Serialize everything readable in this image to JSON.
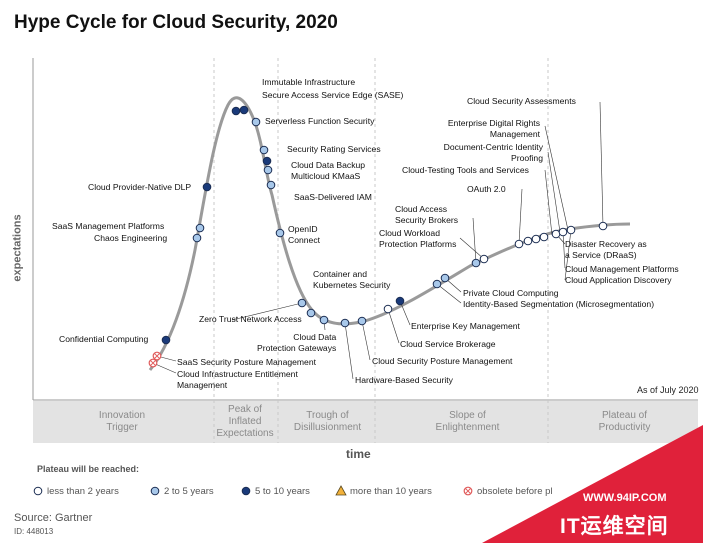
{
  "title": "Hype Cycle for Cloud Security, 2020",
  "axes": {
    "y_label": "expectations",
    "x_label": "time"
  },
  "as_of": "As of July 2020",
  "phases": [
    {
      "line1": "Innovation",
      "line2": "Trigger",
      "line3": ""
    },
    {
      "line1": "Peak of",
      "line2": "Inflated",
      "line3": "Expectations"
    },
    {
      "line1": "Trough of",
      "line2": "Disillusionment",
      "line3": ""
    },
    {
      "line1": "Slope of",
      "line2": "Enlightenment",
      "line3": ""
    },
    {
      "line1": "Plateau of",
      "line2": "Productivity",
      "line3": ""
    }
  ],
  "colors": {
    "less_than_2_years": "#ffffff",
    "2_to_5_years": "#a8c8ea",
    "5_to_10_years": "#1a3a7a",
    "more_than_10_years": "#f2b13a",
    "obsolete_before_plateau": "#e05a5a",
    "curve": "#9a9a9a",
    "phase_band": "#e3e3e3",
    "watermark": "#e0213a"
  },
  "technologies": [
    {
      "name": "Immutable Infrastructure",
      "plateau": "5 to 10 years"
    },
    {
      "name": "Secure Access Service Edge (SASE)",
      "plateau": "5 to 10 years"
    },
    {
      "name": "Serverless Function Security",
      "plateau": "2 to 5 years"
    },
    {
      "name": "Security Rating Services",
      "plateau": "2 to 5 years"
    },
    {
      "name": "Cloud Data Backup",
      "plateau": "5 to 10 years"
    },
    {
      "name": "Multicloud KMaaS",
      "plateau": "2 to 5 years"
    },
    {
      "name": "SaaS-Delivered IAM",
      "plateau": "2 to 5 years"
    },
    {
      "name": "OpenID Connect",
      "plateau": "2 to 5 years"
    },
    {
      "name": "Cloud Provider-Native DLP",
      "plateau": "5 to 10 years"
    },
    {
      "name": "SaaS Management Platforms",
      "plateau": "2 to 5 years"
    },
    {
      "name": "Chaos Engineering",
      "plateau": "2 to 5 years"
    },
    {
      "name": "Confidential Computing",
      "plateau": "5 to 10 years"
    },
    {
      "name": "SaaS Security Posture Management",
      "plateau": "obsolete before plateau"
    },
    {
      "name": "Cloud Infrastructure Entitlement Management",
      "plateau": "obsolete before plateau"
    },
    {
      "name": "Container and Kubernetes Security",
      "plateau": "2 to 5 years"
    },
    {
      "name": "Zero Trust Network Access",
      "plateau": "2 to 5 years"
    },
    {
      "name": "Cloud Data Protection Gateways",
      "plateau": "2 to 5 years"
    },
    {
      "name": "Hardware-Based Security",
      "plateau": "2 to 5 years"
    },
    {
      "name": "Cloud Security Posture Management",
      "plateau": "2 to 5 years"
    },
    {
      "name": "Cloud Service Brokerage",
      "plateau": "less than 2 years"
    },
    {
      "name": "Enterprise Key Management",
      "plateau": "5 to 10 years"
    },
    {
      "name": "Identity-Based Segmentation (Microsegmentation)",
      "plateau": "2 to 5 years"
    },
    {
      "name": "Private Cloud Computing",
      "plateau": "2 to 5 years"
    },
    {
      "name": "Cloud Access Security Brokers",
      "plateau": "2 to 5 years"
    },
    {
      "name": "Cloud Workload Protection Platforms",
      "plateau": "less than 2 years"
    },
    {
      "name": "OAuth 2.0",
      "plateau": "less than 2 years"
    },
    {
      "name": "Cloud Security Assessments",
      "plateau": "less than 2 years"
    },
    {
      "name": "Enterprise Digital Rights Management",
      "plateau": "less than 2 years"
    },
    {
      "name": "Document-Centric Identity Proofing",
      "plateau": "less than 2 years"
    },
    {
      "name": "Cloud-Testing Tools and Services",
      "plateau": "less than 2 years"
    },
    {
      "name": "Disaster Recovery as a Service (DRaaS)",
      "plateau": "less than 2 years"
    },
    {
      "name": "Cloud Management Platforms",
      "plateau": "less than 2 years"
    },
    {
      "name": "Cloud Application Discovery",
      "plateau": "less than 2 years"
    }
  ],
  "labels": {
    "immutable": "Immutable Infrastructure",
    "sase": "Secure Access Service Edge (SASE)",
    "serverless": "Serverless Function Security",
    "rating": "Security Rating Services",
    "backup": "Cloud Data Backup",
    "kmaas": "Multicloud KMaaS",
    "iam": "SaaS-Delivered IAM",
    "openid_1": "OpenID",
    "openid_2": "Connect",
    "dlp": "Cloud Provider-Native DLP",
    "saasmgmt": "SaaS Management Platforms",
    "chaos": "Chaos Engineering",
    "confidential": "Confidential Computing",
    "sspm": "SaaS Security Posture Management",
    "ciem_1": "Cloud Infrastructure Entitlement",
    "ciem_2": "Management",
    "container_1": "Container and",
    "container_2": "Kubernetes Security",
    "ztna": "Zero Trust Network Access",
    "dpg_1": "Cloud Data",
    "dpg_2": "Protection Gateways",
    "hardware": "Hardware-Based Security",
    "cspm": "Cloud Security Posture Management",
    "csb": "Cloud Service Brokerage",
    "ekm": "Enterprise Key Management",
    "ibs": "Identity-Based Segmentation (Microsegmentation)",
    "private": "Private Cloud Computing",
    "casb_1": "Cloud Access",
    "casb_2": "Security Brokers",
    "cwpp_1": "Cloud Workload",
    "cwpp_2": "Protection Platforms",
    "oauth": "OAuth 2.0",
    "csa": "Cloud Security Assessments",
    "edrm_1": "Enterprise Digital Rights",
    "edrm_2": "Management",
    "dcip_1": "Document-Centric Identity",
    "dcip_2": "Proofing",
    "ctt": "Cloud-Testing Tools and Services",
    "draas_1": "Disaster Recovery as",
    "draas_2": "a Service (DRaaS)",
    "cmp": "Cloud Management Platforms",
    "cad": "Cloud Application Discovery"
  },
  "legend": {
    "title": "Plateau will be reached:",
    "items": [
      {
        "label": "less than 2 years"
      },
      {
        "label": "2 to 5 years"
      },
      {
        "label": "5 to 10 years"
      },
      {
        "label": "more than 10 years"
      },
      {
        "label": "obsolete before pl"
      }
    ]
  },
  "source": "Source: Gartner",
  "doc_id": "ID: 448013",
  "watermark": {
    "url": "WWW.94IP.COM",
    "name": "IT运维空间"
  }
}
